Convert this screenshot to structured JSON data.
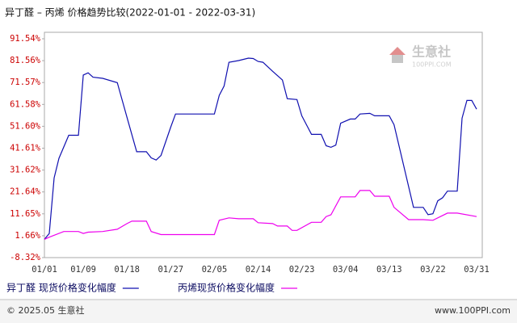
{
  "chart_data": {
    "type": "line",
    "title": "异丁醛  – 丙烯 价格趋势比较(2022-01-01 - 2022-03-31)",
    "watermark": "生意社",
    "watermark_sub": "100PPI.COM",
    "footer_left": "© 2025.05 生意社",
    "footer_right": "www.100PPI.com",
    "ylim": [
      -8.32,
      91.54
    ],
    "yticks": [
      {
        "value": 91.54,
        "label": "91.54%"
      },
      {
        "value": 81.56,
        "label": "81.56%"
      },
      {
        "value": 71.57,
        "label": "71.57%"
      },
      {
        "value": 61.58,
        "label": "61.58%"
      },
      {
        "value": 51.6,
        "label": "51.60%"
      },
      {
        "value": 41.61,
        "label": "41.61%"
      },
      {
        "value": 31.62,
        "label": "31.62%"
      },
      {
        "value": 21.64,
        "label": "21.64%"
      },
      {
        "value": 11.65,
        "label": "11.65%"
      },
      {
        "value": 1.66,
        "label": "1.66%"
      },
      {
        "value": -8.32,
        "label": "-8.32%"
      }
    ],
    "xlim": [
      "01/01",
      "03/31"
    ],
    "xticks": [
      "01/01",
      "01/09",
      "01/18",
      "01/27",
      "02/05",
      "02/14",
      "02/23",
      "03/04",
      "03/13",
      "03/22",
      "03/31"
    ],
    "series": [
      {
        "name": "异丁醛 现货价格变化幅度",
        "color": "#1010b0",
        "x": [
          "01/01",
          "01/02",
          "01/03",
          "01/04",
          "01/06",
          "01/08",
          "01/09",
          "01/10",
          "01/11",
          "01/13",
          "01/16",
          "01/18",
          "01/20",
          "01/22",
          "01/23",
          "01/24",
          "01/25",
          "01/27",
          "01/28",
          "02/05",
          "02/06",
          "02/07",
          "02/08",
          "02/10",
          "02/12",
          "02/13",
          "02/14",
          "02/15",
          "02/17",
          "02/19",
          "02/20",
          "02/22",
          "02/23",
          "02/25",
          "02/27",
          "02/28",
          "03/01",
          "03/02",
          "03/03",
          "03/05",
          "03/06",
          "03/07",
          "03/09",
          "03/10",
          "03/13",
          "03/14",
          "03/18",
          "03/20",
          "03/21",
          "03/22",
          "03/23",
          "03/24",
          "03/25",
          "03/27",
          "03/28",
          "03/29",
          "03/30",
          "03/31"
        ],
        "values": [
          0,
          2.7,
          28,
          37,
          47.5,
          47.5,
          75,
          76,
          74,
          73.5,
          71.5,
          55.7,
          40,
          40,
          37.2,
          36.2,
          38.3,
          51.2,
          57.2,
          57.2,
          65.7,
          70,
          80.8,
          81.6,
          82.7,
          82.5,
          81.2,
          80.8,
          76.7,
          72.7,
          64.2,
          63.8,
          56.4,
          47.9,
          47.9,
          42.7,
          42,
          43,
          53,
          54.9,
          54.9,
          57.2,
          57.5,
          56.4,
          56.4,
          52.3,
          14.6,
          14.6,
          11.3,
          11.7,
          17.6,
          19,
          22,
          22,
          55.3,
          63.4,
          63.4,
          59.4
        ]
      },
      {
        "name": "丙烯现货价格变化幅度",
        "color": "#ee00ee",
        "x": [
          "01/01",
          "01/02",
          "01/05",
          "01/08",
          "01/09",
          "01/10",
          "01/13",
          "01/16",
          "01/18",
          "01/19",
          "01/22",
          "01/23",
          "01/25",
          "02/05",
          "02/06",
          "02/08",
          "02/10",
          "02/13",
          "02/14",
          "02/17",
          "02/18",
          "02/20",
          "02/21",
          "02/22",
          "02/25",
          "02/27",
          "02/28",
          "03/01",
          "03/03",
          "03/06",
          "03/07",
          "03/09",
          "03/10",
          "03/13",
          "03/14",
          "03/17",
          "03/20",
          "03/22",
          "03/25",
          "03/27",
          "03/31"
        ],
        "values": [
          0,
          1,
          3.6,
          3.6,
          2.7,
          3.3,
          3.6,
          4.6,
          7.2,
          8.3,
          8.3,
          3.6,
          2.2,
          2.2,
          8.7,
          9.8,
          9.4,
          9.4,
          7.6,
          7.2,
          6.1,
          6.1,
          4.1,
          4.1,
          7.8,
          7.8,
          10.4,
          11.2,
          19.4,
          19.4,
          22.3,
          22.3,
          19.7,
          19.7,
          14.6,
          9,
          9,
          8.7,
          12,
          12,
          10.4
        ]
      }
    ]
  }
}
